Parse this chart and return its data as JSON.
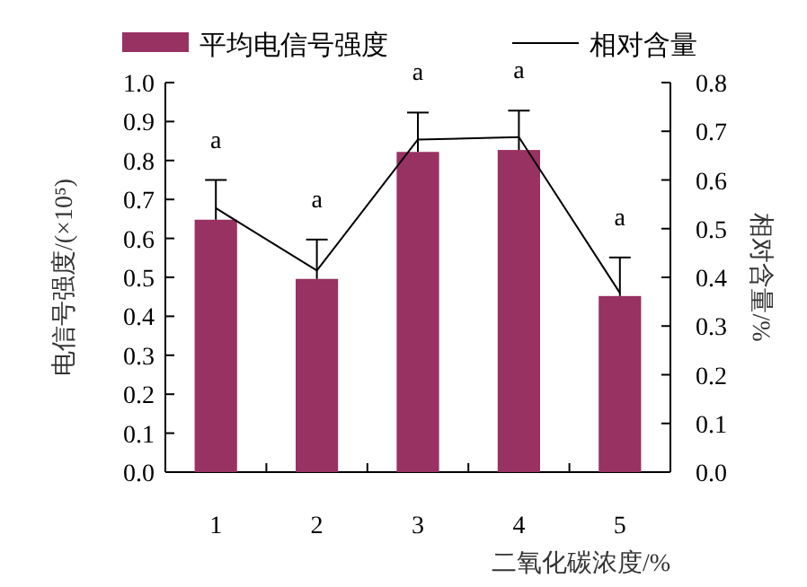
{
  "chart_data": {
    "type": "bar",
    "xlabel": "二氧化碳浓度/%",
    "ylabel": "电信号强度/(×10⁵)",
    "y2label": "相对含量/%",
    "categories": [
      "1",
      "2",
      "3",
      "4",
      "5"
    ],
    "series": [
      {
        "name": "平均电信号强度",
        "color": "#983262",
        "values": [
          0.648,
          0.496,
          0.822,
          0.827,
          0.452
        ],
        "errors": [
          [
            0.648,
            0.75
          ],
          [
            0.496,
            0.597
          ],
          [
            0.822,
            0.923
          ],
          [
            0.827,
            0.928
          ],
          [
            0.452,
            0.551
          ]
        ]
      },
      {
        "name": "相对含量",
        "type": "line",
        "axis": "y2",
        "color": "#000000",
        "values": [
          0.542,
          0.414,
          0.683,
          0.688,
          0.368
        ]
      }
    ],
    "annotations": [
      "a",
      "a",
      "a",
      "a",
      "a"
    ],
    "ylim": [
      0,
      1.0
    ],
    "yticks": [
      {
        "value": 0,
        "label": "0.0"
      },
      {
        "value": 0.1,
        "label": "0.1"
      },
      {
        "value": 0.2,
        "label": "0.2"
      },
      {
        "value": 0.3,
        "label": "0.3"
      },
      {
        "value": 0.4,
        "label": "0.4"
      },
      {
        "value": 0.5,
        "label": "0.5"
      },
      {
        "value": 0.6,
        "label": "0.6"
      },
      {
        "value": 0.7,
        "label": "0.7"
      },
      {
        "value": 0.8,
        "label": "0.8"
      },
      {
        "value": 0.9,
        "label": "0.9"
      },
      {
        "value": 1.0,
        "label": "1.0"
      }
    ],
    "y2lim": [
      0,
      0.8
    ],
    "y2ticks": [
      {
        "value": 0,
        "label": "0.0"
      },
      {
        "value": 0.1,
        "label": "0.1"
      },
      {
        "value": 0.2,
        "label": "0.2"
      },
      {
        "value": 0.3,
        "label": "0.3"
      },
      {
        "value": 0.4,
        "label": "0.4"
      },
      {
        "value": 0.5,
        "label": "0.5"
      },
      {
        "value": 0.6,
        "label": "0.6"
      },
      {
        "value": 0.7,
        "label": "0.7"
      },
      {
        "value": 0.8,
        "label": "0.8"
      }
    ],
    "grid": false,
    "legend": "top",
    "marker": "none",
    "line_style": "solid"
  }
}
